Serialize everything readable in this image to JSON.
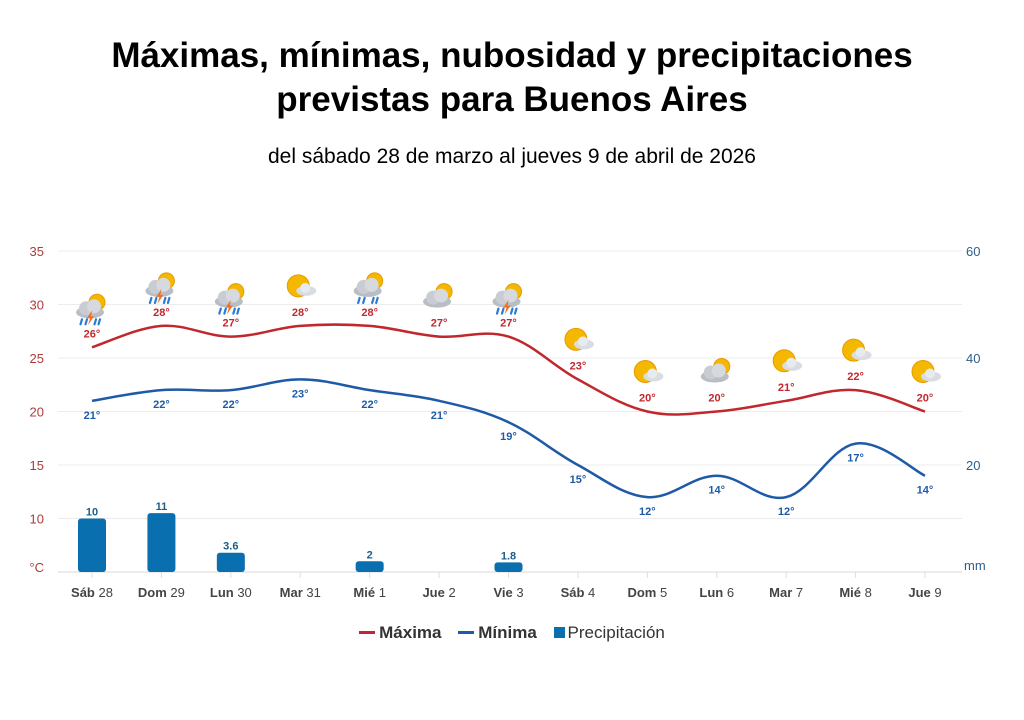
{
  "title_line1": "Máximas, mínimas, nubosidad  y precipitaciones",
  "title_line2": "previstas para Buenos Aires",
  "subtitle": "del sábado 28 de marzo al jueves 9 de abril de 2026",
  "chart_data": {
    "type": "line",
    "categories": [
      {
        "day": "Sáb",
        "num": "28"
      },
      {
        "day": "Dom",
        "num": "29"
      },
      {
        "day": "Lun",
        "num": "30"
      },
      {
        "day": "Mar",
        "num": "31"
      },
      {
        "day": "Mié",
        "num": "1"
      },
      {
        "day": "Jue",
        "num": "2"
      },
      {
        "day": "Vie",
        "num": "3"
      },
      {
        "day": "Sáb",
        "num": "4"
      },
      {
        "day": "Dom",
        "num": "5"
      },
      {
        "day": "Lun",
        "num": "6"
      },
      {
        "day": "Mar",
        "num": "7"
      },
      {
        "day": "Mié",
        "num": "8"
      },
      {
        "day": "Jue",
        "num": "9"
      }
    ],
    "series": [
      {
        "name": "Máxima",
        "type": "line",
        "color": "#c0282d",
        "axis": "left",
        "values": [
          26,
          28,
          27,
          28,
          28,
          27,
          27,
          23,
          20,
          20,
          21,
          22,
          20
        ]
      },
      {
        "name": "Mínima",
        "type": "line",
        "color": "#1f5aa6",
        "axis": "left",
        "values": [
          21,
          22,
          22,
          23,
          22,
          21,
          19,
          15,
          12,
          14,
          12,
          17,
          14
        ]
      },
      {
        "name": "Precipitación",
        "type": "bar",
        "color": "#0a6fae",
        "axis": "right",
        "values": [
          10,
          11,
          3.6,
          null,
          2,
          null,
          1.8,
          null,
          null,
          null,
          null,
          null,
          null
        ],
        "labels": [
          "10",
          "11",
          "3.6",
          "",
          "2",
          "",
          "1.8",
          "",
          "",
          "",
          "",
          "",
          ""
        ]
      }
    ],
    "weather_icons": [
      "storm",
      "storm",
      "storm",
      "partly-cloudy",
      "rain",
      "cloudy",
      "storm",
      "partly-cloudy",
      "partly-cloudy",
      "cloudy",
      "partly-cloudy",
      "partly-cloudy",
      "partly-cloudy"
    ],
    "left_axis": {
      "unit": "°C",
      "ticks": [
        "35",
        "30",
        "25",
        "20",
        "15",
        "10"
      ],
      "range": [
        5,
        35
      ],
      "color": "#b03a3a"
    },
    "right_axis": {
      "unit": "mm",
      "ticks": [
        "60",
        "40",
        "20"
      ],
      "range": [
        0,
        60
      ],
      "color": "#2f5d8a"
    },
    "degree_suffix": "°",
    "grid": true,
    "legend_position": "bottom"
  }
}
